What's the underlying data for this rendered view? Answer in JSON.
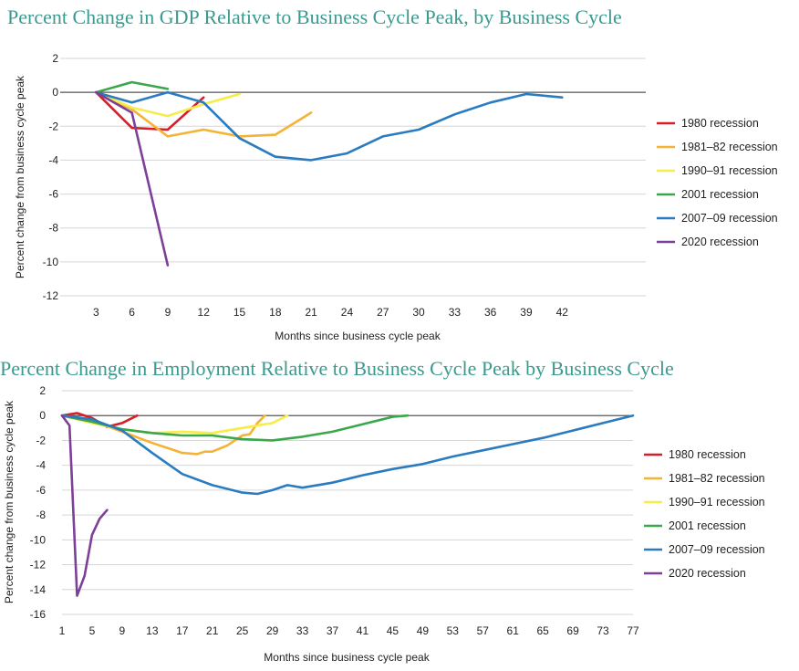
{
  "colors": {
    "title": "#3a9a90",
    "s1980": "#d71f2a",
    "s1981": "#f5b335",
    "s1990": "#f6ec4a",
    "s2001": "#3aa84a",
    "s2007": "#2a7bbf",
    "s2020": "#7d3f98",
    "grid": "#d6d6d6"
  },
  "chart_data": [
    {
      "type": "line",
      "title": "Percent Change in GDP Relative to Business Cycle Peak, by Business Cycle",
      "xlabel": "Months since business cycle peak",
      "ylabel": "Percent change from business cycle peak",
      "xticks": [
        "3",
        "6",
        "9",
        "12",
        "15",
        "18",
        "21",
        "24",
        "27",
        "30",
        "33",
        "36",
        "39",
        "42"
      ],
      "yticks": [
        "2",
        "0",
        "-2",
        "-4",
        "-6",
        "-8",
        "-10",
        "-12"
      ],
      "xlim": [
        0,
        49
      ],
      "ylim": [
        -12,
        2
      ],
      "grid": true,
      "legend_position": "right",
      "series": [
        {
          "name": "1980 recession",
          "color": "#d71f2a",
          "x": [
            3,
            6,
            9,
            12
          ],
          "y": [
            0,
            -2.1,
            -2.2,
            -0.3
          ]
        },
        {
          "name": "1981–82 recession",
          "color": "#f5b335",
          "x": [
            3,
            6,
            9,
            12,
            15,
            18,
            21
          ],
          "y": [
            0,
            -1.0,
            -2.6,
            -2.2,
            -2.6,
            -2.5,
            -1.2
          ]
        },
        {
          "name": "1990–91 recession",
          "color": "#f6ec4a",
          "x": [
            3,
            6,
            9,
            12,
            15
          ],
          "y": [
            0,
            -0.9,
            -1.4,
            -0.7,
            -0.1
          ]
        },
        {
          "name": "2001 recession",
          "color": "#3aa84a",
          "x": [
            3,
            6,
            9
          ],
          "y": [
            0,
            0.6,
            0.2
          ]
        },
        {
          "name": "2007–09 recession",
          "color": "#2a7bbf",
          "x": [
            3,
            6,
            9,
            12,
            15,
            18,
            21,
            24,
            27,
            30,
            33,
            36,
            39,
            42
          ],
          "y": [
            0,
            -0.6,
            0,
            -0.6,
            -2.7,
            -3.8,
            -4.0,
            -3.6,
            -2.6,
            -2.2,
            -1.3,
            -0.6,
            -0.1,
            -0.3
          ]
        },
        {
          "name": "2020 recession",
          "color": "#7d3f98",
          "x": [
            3,
            6,
            9
          ],
          "y": [
            0,
            -1.2,
            -10.2
          ]
        }
      ]
    },
    {
      "type": "line",
      "title": "Percent Change in Employment Relative to Business Cycle Peak by Business Cycle",
      "xlabel": "Months since business cycle peak",
      "ylabel": "Percent change from business cycle peak",
      "xticks": [
        "1",
        "5",
        "9",
        "13",
        "17",
        "21",
        "25",
        "29",
        "33",
        "37",
        "41",
        "45",
        "49",
        "53",
        "57",
        "61",
        "65",
        "69",
        "73",
        "77"
      ],
      "yticks": [
        "2",
        "0",
        "-2",
        "-4",
        "-6",
        "-8",
        "-10",
        "-12",
        "-14",
        "-16"
      ],
      "xlim": [
        1,
        77
      ],
      "ylim": [
        -16,
        2
      ],
      "grid": true,
      "legend_position": "right",
      "series": [
        {
          "name": "1980 recession",
          "color": "#d71f2a",
          "x": [
            1,
            3,
            5,
            7,
            9,
            11
          ],
          "y": [
            0,
            0.2,
            -0.2,
            -0.9,
            -0.6,
            0
          ]
        },
        {
          "name": "1981–82 recession",
          "color": "#f5b335",
          "x": [
            1,
            5,
            9,
            13,
            15,
            17,
            19,
            20,
            21,
            23,
            25,
            26,
            27,
            28
          ],
          "y": [
            0,
            -0.4,
            -1.3,
            -2.2,
            -2.6,
            -3.0,
            -3.1,
            -2.9,
            -2.9,
            -2.4,
            -1.6,
            -1.5,
            -0.6,
            0
          ]
        },
        {
          "name": "1990–91 recession",
          "color": "#f6ec4a",
          "x": [
            1,
            5,
            9,
            13,
            17,
            21,
            25,
            29,
            31
          ],
          "y": [
            0,
            -0.6,
            -1.1,
            -1.4,
            -1.3,
            -1.4,
            -1.0,
            -0.6,
            0
          ]
        },
        {
          "name": "2001 recession",
          "color": "#3aa84a",
          "x": [
            1,
            5,
            9,
            13,
            17,
            21,
            25,
            29,
            33,
            37,
            41,
            43,
            45,
            47
          ],
          "y": [
            0,
            -0.5,
            -1.1,
            -1.4,
            -1.6,
            -1.6,
            -1.9,
            -2.0,
            -1.7,
            -1.3,
            -0.7,
            -0.4,
            -0.1,
            0
          ]
        },
        {
          "name": "2007–09 recession",
          "color": "#2a7bbf",
          "x": [
            1,
            5,
            9,
            13,
            17,
            21,
            25,
            27,
            29,
            31,
            33,
            37,
            41,
            45,
            49,
            53,
            57,
            61,
            65,
            69,
            73,
            77
          ],
          "y": [
            0,
            -0.3,
            -1.2,
            -3.0,
            -4.7,
            -5.6,
            -6.2,
            -6.3,
            -6.0,
            -5.6,
            -5.8,
            -5.4,
            -4.8,
            -4.3,
            -3.9,
            -3.3,
            -2.8,
            -2.3,
            -1.8,
            -1.2,
            -0.6,
            0
          ]
        },
        {
          "name": "2020 recession",
          "color": "#7d3f98",
          "x": [
            1,
            2,
            3,
            4,
            5,
            6,
            7
          ],
          "y": [
            0,
            -0.8,
            -14.5,
            -12.9,
            -9.6,
            -8.3,
            -7.6
          ]
        }
      ]
    }
  ]
}
